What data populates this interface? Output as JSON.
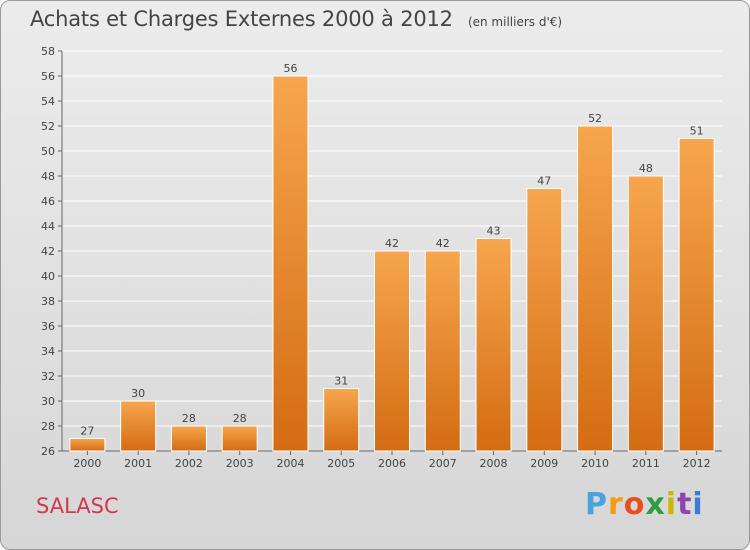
{
  "title": "Achats et Charges Externes 2000 à 2012",
  "subtitle": "(en milliers d'€)",
  "place": "SALASC",
  "logo": {
    "letters": [
      "P",
      "r",
      "o",
      "x",
      "i",
      "t",
      "i"
    ],
    "colors": [
      "#4aa3df",
      "#f39c12",
      "#e94e1b",
      "#2c9e3f",
      "#c9b800",
      "#8e44ad",
      "#3a7bd5"
    ]
  },
  "colors": {
    "bar": "#f0993a",
    "bar_dark": "#d97416",
    "text": "#444444",
    "grid": "#ffffff",
    "place": "#d2384e"
  },
  "chart_data": {
    "type": "bar",
    "categories": [
      "2000",
      "2001",
      "2002",
      "2003",
      "2004",
      "2005",
      "2006",
      "2007",
      "2008",
      "2009",
      "2010",
      "2011",
      "2012"
    ],
    "values": [
      27,
      30,
      28,
      28,
      56,
      31,
      42,
      42,
      43,
      47,
      52,
      48,
      51
    ],
    "data_labels": [
      "27",
      "30",
      "28",
      "28",
      "56",
      "31",
      "42",
      "42",
      "43",
      "47",
      "52",
      "48",
      "51"
    ],
    "y_ticks": [
      "26",
      "28",
      "30",
      "32",
      "34",
      "36",
      "38",
      "40",
      "42",
      "44",
      "46",
      "48",
      "50",
      "52",
      "54",
      "56",
      "58"
    ],
    "ylim": [
      26,
      58
    ],
    "grid": true
  }
}
